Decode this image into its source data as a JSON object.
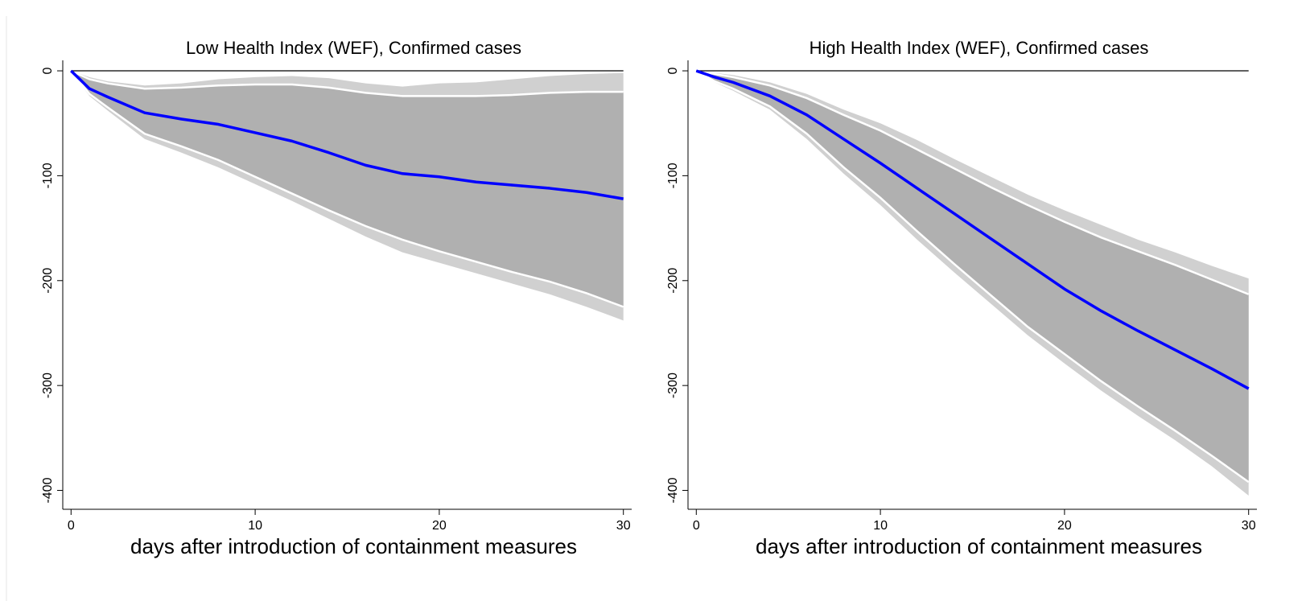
{
  "chart_data": [
    {
      "type": "line",
      "title": "Low Health Index (WEF), Confirmed cases",
      "xlabel": "days after introduction of containment measures",
      "x": [
        0,
        1,
        2,
        4,
        6,
        8,
        10,
        12,
        14,
        16,
        18,
        20,
        22,
        24,
        26,
        28,
        30
      ],
      "series": [
        {
          "color": "#0000ff",
          "values": [
            0,
            -17,
            -25,
            -40,
            -46,
            -51,
            -59,
            -67,
            -78,
            -90,
            -98,
            -101,
            -106,
            -109,
            -112,
            -116,
            -122
          ]
        }
      ],
      "bands": [
        {
          "color": "#d0d0d0",
          "upper": [
            0,
            -6,
            -10,
            -14,
            -12,
            -8,
            -6,
            -5,
            -7,
            -12,
            -15,
            -12,
            -11,
            -8,
            -5,
            -3,
            -2
          ],
          "lower": [
            0,
            -24,
            -38,
            -65,
            -78,
            -92,
            -108,
            -124,
            -141,
            -158,
            -173,
            -183,
            -193,
            -203,
            -213,
            -225,
            -238
          ]
        },
        {
          "color": "#b0b0b0",
          "upper": [
            0,
            -8,
            -12,
            -17,
            -16,
            -14,
            -13,
            -13,
            -16,
            -21,
            -24,
            -24,
            -24,
            -23,
            -21,
            -20,
            -20
          ],
          "lower": [
            0,
            -22,
            -35,
            -60,
            -72,
            -85,
            -101,
            -117,
            -133,
            -148,
            -161,
            -172,
            -182,
            -192,
            -201,
            -212,
            -225
          ]
        }
      ],
      "reference_line": 0,
      "xlim": [
        -0.45,
        30.45
      ],
      "ylim": [
        -418,
        10
      ],
      "xticks": [
        0,
        10,
        20,
        30
      ],
      "yticks": [
        0,
        -100,
        -200,
        -300,
        -400
      ]
    },
    {
      "type": "line",
      "title": "High Health Index (WEF), Confirmed cases",
      "xlabel": "days after introduction of containment measures",
      "x": [
        0,
        1,
        2,
        4,
        6,
        8,
        10,
        12,
        14,
        16,
        18,
        20,
        22,
        24,
        26,
        28,
        30
      ],
      "series": [
        {
          "color": "#0000ff",
          "values": [
            0,
            -6,
            -11,
            -24,
            -42,
            -65,
            -88,
            -112,
            -136,
            -160,
            -184,
            -208,
            -229,
            -248,
            -266,
            -284,
            -303
          ]
        }
      ],
      "bands": [
        {
          "color": "#d0d0d0",
          "upper": [
            0,
            -2,
            -4,
            -11,
            -22,
            -37,
            -50,
            -66,
            -84,
            -101,
            -118,
            -133,
            -147,
            -161,
            -173,
            -186,
            -198
          ],
          "lower": [
            0,
            -11,
            -19,
            -37,
            -65,
            -98,
            -128,
            -161,
            -192,
            -222,
            -252,
            -279,
            -305,
            -329,
            -352,
            -377,
            -405
          ]
        },
        {
          "color": "#b0b0b0",
          "upper": [
            0,
            -3,
            -6,
            -14,
            -26,
            -42,
            -57,
            -75,
            -93,
            -111,
            -128,
            -144,
            -159,
            -172,
            -185,
            -199,
            -213
          ],
          "lower": [
            0,
            -10,
            -17,
            -34,
            -60,
            -92,
            -121,
            -153,
            -184,
            -214,
            -244,
            -270,
            -296,
            -320,
            -343,
            -367,
            -392
          ]
        }
      ],
      "reference_line": 0,
      "xlim": [
        -0.45,
        30.45
      ],
      "ylim": [
        -418,
        10
      ],
      "xticks": [
        0,
        10,
        20,
        30
      ],
      "yticks": [
        0,
        -100,
        -200,
        -300,
        -400
      ]
    }
  ]
}
